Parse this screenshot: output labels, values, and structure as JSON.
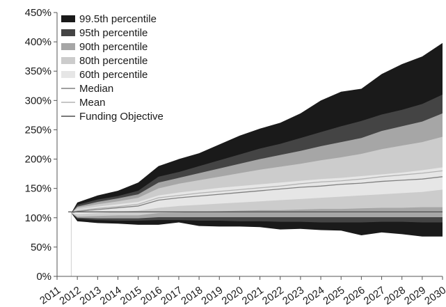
{
  "chart_data": {
    "type": "area",
    "title": "",
    "xlabel": "",
    "ylabel": "",
    "x": [
      2011,
      2012,
      2013,
      2014,
      2015,
      2016,
      2017,
      2018,
      2019,
      2020,
      2021,
      2022,
      2023,
      2024,
      2025,
      2026,
      2027,
      2028,
      2029,
      2030
    ],
    "x_tick_labels": [
      "2011",
      "2012",
      "2013",
      "2014",
      "2015",
      "2016",
      "2017",
      "2018",
      "2019",
      "2020",
      "2021",
      "2022",
      "2023",
      "2024",
      "2025",
      "2026",
      "2027",
      "2028",
      "2029",
      "2030"
    ],
    "ylim": [
      0,
      450
    ],
    "y_ticks": [
      0,
      50,
      100,
      150,
      200,
      250,
      300,
      350,
      400,
      450
    ],
    "y_tick_labels": [
      "0%",
      "50%",
      "100%",
      "150%",
      "200%",
      "250%",
      "300%",
      "350%",
      "400%",
      "450%"
    ],
    "x_start": 2011.7,
    "legend_position": "top-left",
    "grid": false,
    "bands": [
      {
        "name": "99.5th percentile",
        "color": "#1a1a1a",
        "upper": [
          108,
          126,
          138,
          146,
          160,
          188,
          200,
          210,
          225,
          240,
          252,
          262,
          278,
          300,
          315,
          320,
          345,
          362,
          375,
          398
        ],
        "lower": [
          108,
          94,
          91,
          90,
          88,
          88,
          92,
          86,
          85,
          85,
          84,
          80,
          81,
          79,
          78,
          70,
          75,
          72,
          68,
          68
        ]
      },
      {
        "name": "95th percentile",
        "color": "#444444",
        "upper": [
          108,
          122,
          131,
          137,
          146,
          170,
          178,
          188,
          198,
          208,
          218,
          226,
          236,
          246,
          256,
          265,
          276,
          284,
          294,
          310
        ],
        "lower": [
          108,
          98,
          96,
          95,
          95,
          96,
          96,
          95,
          95,
          94,
          94,
          93,
          93,
          92,
          92,
          92,
          93,
          93,
          92,
          92
        ]
      },
      {
        "name": "90th percentile",
        "color": "#a6a6a6",
        "upper": [
          108,
          119,
          127,
          133,
          140,
          160,
          168,
          176,
          184,
          192,
          200,
          207,
          214,
          222,
          229,
          236,
          248,
          256,
          264,
          278
        ],
        "lower": [
          108,
          100,
          99,
          99,
          99,
          101,
          101,
          101,
          101,
          101,
          101,
          101,
          101,
          101,
          101,
          101,
          101,
          101,
          101,
          101
        ]
      },
      {
        "name": "80th percentile",
        "color": "#cccccc",
        "upper": [
          108,
          117,
          123,
          128,
          134,
          150,
          158,
          164,
          170,
          176,
          182,
          187,
          192,
          198,
          203,
          209,
          217,
          223,
          229,
          238
        ],
        "lower": [
          108,
          102,
          103,
          104,
          104,
          108,
          109,
          110,
          111,
          112,
          113,
          113,
          114,
          115,
          115,
          116,
          117,
          117,
          118,
          118
        ]
      },
      {
        "name": "60th percentile",
        "color": "#e6e6e6",
        "upper": [
          108,
          114,
          119,
          123,
          127,
          138,
          143,
          147,
          151,
          154,
          157,
          160,
          163,
          166,
          168,
          171,
          174,
          177,
          181,
          186
        ],
        "lower": [
          108,
          106,
          108,
          110,
          112,
          117,
          120,
          122,
          124,
          126,
          128,
          130,
          132,
          134,
          136,
          138,
          140,
          142,
          144,
          148
        ]
      }
    ],
    "lines": [
      {
        "name": "Median",
        "color": "#808080",
        "values": [
          108,
          111,
          114,
          117,
          120,
          130,
          134,
          137,
          140,
          143,
          146,
          149,
          152,
          154,
          157,
          159,
          162,
          164,
          166,
          170
        ]
      },
      {
        "name": "Mean",
        "color": "#b3b3b3",
        "values": [
          108,
          112,
          116,
          119,
          123,
          134,
          138,
          142,
          145,
          148,
          151,
          154,
          158,
          161,
          163,
          166,
          170,
          173,
          176,
          180
        ]
      },
      {
        "name": "Funding Objective",
        "color": "#4d4d4d",
        "values": [
          110,
          110,
          110,
          110,
          110,
          110,
          110,
          110,
          110,
          110,
          110,
          110,
          110,
          110,
          110,
          110,
          110,
          110,
          110,
          110
        ]
      }
    ]
  }
}
